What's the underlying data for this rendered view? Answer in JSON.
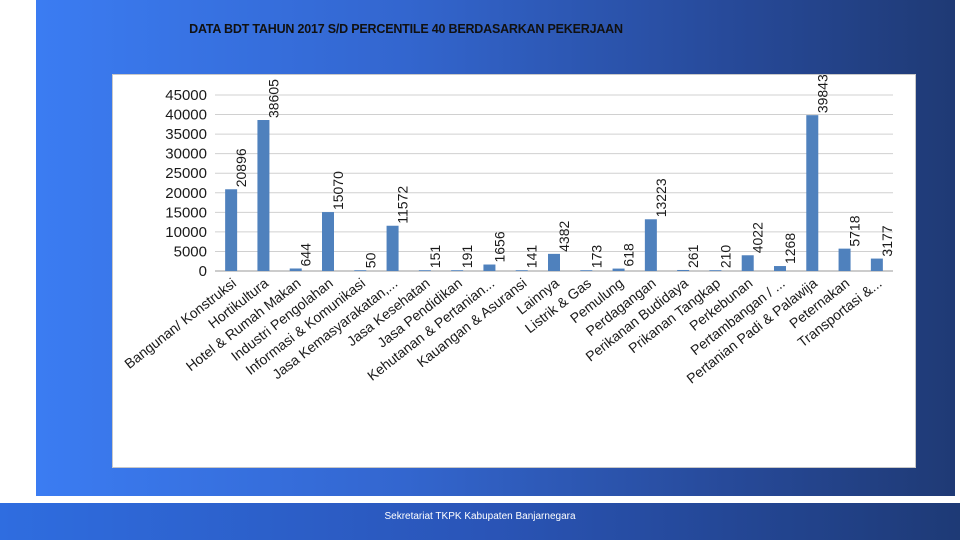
{
  "slide": {
    "title": "DATA BDT TAHUN 2017 S/D PERCENTILE 40 BERDASARKAN PEKERJAAN",
    "footer": "Sekretariat TKPK Kabupaten Banjarnegara"
  },
  "colors": {
    "bar": "#4f81bd",
    "grid": "#d0d0d0",
    "text": "#1a1a1a"
  },
  "chart_data": {
    "type": "bar",
    "title": "",
    "xlabel": "",
    "ylabel": "",
    "ylim": [
      0,
      45000
    ],
    "yticks": [
      0,
      5000,
      10000,
      15000,
      20000,
      25000,
      30000,
      35000,
      40000,
      45000
    ],
    "grid": true,
    "legend": "none",
    "categories": [
      "Bangunan/ Konstruksi",
      "Hortikultura",
      "Hotel & Rumah Makan",
      "Industri Pengolahan",
      "Informasi & Komunikasi",
      "Jasa Kemasyarakatan,...",
      "Jasa Kesehatan",
      "Jasa Pendidikan",
      "Kehutanan & Pertanian...",
      "Kauangan & Asuransi",
      "Lainnya",
      "Listrik & Gas",
      "Pemulung",
      "Perdagangan",
      "Perikanan Budidaya",
      "Prikanan Tangkap",
      "Perkebunan",
      "Pertambangan / ...",
      "Pertanian Padi & Palawija",
      "Peternakan",
      "Transportasi &..."
    ],
    "values": [
      20896,
      38605,
      644,
      15070,
      50,
      11572,
      151,
      191,
      1656,
      141,
      4382,
      173,
      618,
      13223,
      261,
      210,
      4022,
      1268,
      39843,
      5718,
      3177
    ],
    "data_labels": [
      "20896",
      "38605",
      "644",
      "15070",
      "50",
      "11572",
      "151",
      "191",
      "1656",
      "141",
      "4382",
      "173",
      "618",
      "13223",
      "261",
      "210",
      "4022",
      "1268",
      "39843",
      "5718",
      "3177"
    ]
  }
}
